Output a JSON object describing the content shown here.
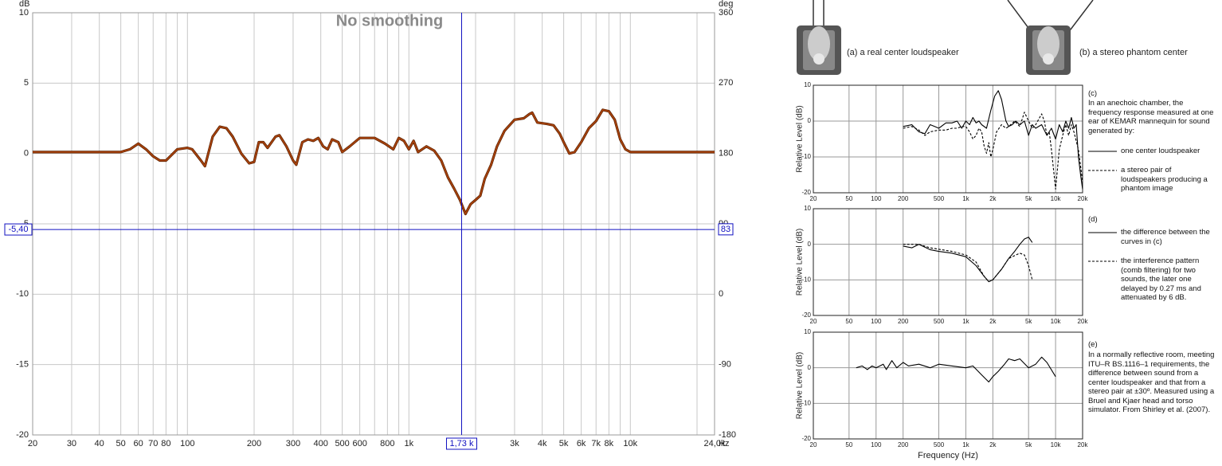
{
  "chart_data": [
    {
      "type": "line",
      "title": "No smoothing",
      "ylabel": "dB",
      "y2label": "deg",
      "x_unit": "Hz",
      "xscale": "log",
      "xlim": [
        20,
        24000
      ],
      "xticks": [
        20,
        30,
        40,
        50,
        60,
        70,
        80,
        100,
        200,
        300,
        400,
        500,
        600,
        800,
        {
          "value": 1000,
          "label": "1k"
        },
        {
          "value": 3000,
          "label": "3k"
        },
        {
          "value": 4000,
          "label": "4k"
        },
        {
          "value": 5000,
          "label": "5k"
        },
        {
          "value": 6000,
          "label": "6k"
        },
        {
          "value": 7000,
          "label": "7k"
        },
        {
          "value": 8000,
          "label": "8k"
        },
        {
          "value": 10000,
          "label": "10k"
        },
        {
          "value": 24000,
          "label": "24,0k"
        }
      ],
      "xminor": [
        90,
        700,
        900,
        2000,
        9000,
        20000
      ],
      "ylim": [
        -20,
        10
      ],
      "yticks": [
        -20,
        -15,
        -10,
        -5,
        0,
        5,
        10
      ],
      "y2lim": [
        -180,
        360
      ],
      "y2ticks": [
        -180,
        -90,
        0,
        90,
        180,
        270,
        360
      ],
      "grid": true,
      "cursor": {
        "x": {
          "value": 1730,
          "label": "1,73 k"
        },
        "y": {
          "value": -5.4,
          "label": "-5,40"
        },
        "y2": 83
      },
      "series": [
        {
          "color": "#a8420c",
          "style": "solid",
          "x": [
            20,
            50,
            55,
            60,
            65,
            70,
            75,
            80,
            90,
            100,
            105,
            115,
            120,
            130,
            140,
            150,
            160,
            175,
            190,
            200,
            210,
            220,
            230,
            250,
            260,
            280,
            300,
            310,
            330,
            350,
            370,
            390,
            410,
            430,
            450,
            480,
            500,
            540,
            600,
            700,
            780,
            850,
            900,
            950,
            1000,
            1050,
            1100,
            1200,
            1300,
            1400,
            1500,
            1600,
            1700,
            1800,
            1900,
            2000,
            2100,
            2200,
            2350,
            2500,
            2700,
            3000,
            3300,
            3500,
            3600,
            3800,
            4200,
            4500,
            4800,
            5000,
            5300,
            5600,
            6000,
            6500,
            7000,
            7500,
            8000,
            8500,
            9000,
            9500,
            10000,
            24000
          ],
          "values": [
            0.1,
            0.1,
            0.3,
            0.7,
            0.3,
            -0.2,
            -0.5,
            -0.5,
            0.3,
            0.4,
            0.3,
            -0.5,
            -0.9,
            1.2,
            1.9,
            1.8,
            1.2,
            0,
            -0.7,
            -0.6,
            0.8,
            0.8,
            0.4,
            1.2,
            1.3,
            0.5,
            -0.5,
            -0.8,
            0.8,
            1.0,
            0.9,
            1.1,
            0.5,
            0.3,
            1.0,
            0.8,
            0.1,
            0.5,
            1.1,
            1.1,
            0.7,
            0.3,
            1.1,
            0.9,
            0.3,
            0.9,
            0.1,
            0.5,
            0.2,
            -0.5,
            -1.7,
            -2.5,
            -3.3,
            -4.3,
            -3.6,
            -3.3,
            -3.0,
            -1.8,
            -0.8,
            0.5,
            1.6,
            2.4,
            2.5,
            2.8,
            2.9,
            2.2,
            2.1,
            2.0,
            1.4,
            0.8,
            0.0,
            0.1,
            0.8,
            1.8,
            2.3,
            3.1,
            3.0,
            2.4,
            1.0,
            0.3,
            0.1,
            0.1
          ]
        }
      ]
    },
    {
      "type": "line",
      "panel": "(c)",
      "caption": "In an anechoic chamber, the frequency response measured at one ear of KEMAR mannequin for sound generated by:",
      "ylabel": "Relative Level (dB)",
      "xscale": "log",
      "xlim": [
        20,
        20000
      ],
      "xticks": [
        20,
        50,
        100,
        200,
        500,
        {
          "value": 1000,
          "label": "1k"
        },
        {
          "value": 2000,
          "label": "2k"
        },
        {
          "value": 5000,
          "label": "5k"
        },
        {
          "value": 10000,
          "label": "10k"
        },
        {
          "value": 20000,
          "label": "20k"
        }
      ],
      "ylim": [
        -20,
        10
      ],
      "yticks": [
        -20,
        -10,
        0,
        10
      ],
      "grid": true,
      "series": [
        {
          "name": "one center loudspeaker",
          "color": "#000000",
          "style": "solid",
          "x": [
            200,
            250,
            300,
            350,
            400,
            450,
            500,
            600,
            700,
            800,
            900,
            1000,
            1100,
            1200,
            1300,
            1400,
            1500,
            1700,
            1900,
            2100,
            2300,
            2500,
            2800,
            3000,
            3300,
            3600,
            4000,
            4500,
            5000,
            5500,
            6000,
            7000,
            8000,
            9000,
            10000,
            11000,
            12000,
            13000,
            14000,
            15000,
            16000,
            17000,
            18000,
            19000,
            20000
          ],
          "values": [
            -1.5,
            -1,
            -3,
            -3.5,
            -1,
            -1.5,
            -2,
            -0.5,
            -0.5,
            0,
            -2,
            0,
            -1,
            1,
            -0.5,
            0,
            -1,
            -2,
            3,
            7,
            8.5,
            6,
            0,
            -1.5,
            -1,
            0,
            -1,
            0,
            -4,
            -1,
            -2,
            -1,
            -4,
            -2,
            -5,
            -1,
            -3,
            0,
            -2,
            1,
            -2,
            -1,
            -10,
            -15,
            -19
          ]
        },
        {
          "name": "a stereo pair of loudspeakers producing a phantom image",
          "color": "#000000",
          "style": "dashed",
          "x": [
            200,
            250,
            300,
            350,
            400,
            500,
            600,
            700,
            800,
            900,
            1000,
            1100,
            1200,
            1300,
            1400,
            1500,
            1600,
            1700,
            1800,
            1900,
            2000,
            2200,
            2500,
            2800,
            3000,
            3500,
            4000,
            4500,
            5000,
            5500,
            6000,
            7000,
            7500,
            8000,
            8500,
            9000,
            10000,
            11000,
            12000,
            13000,
            14000,
            15000,
            16000,
            18000,
            20000
          ],
          "values": [
            -2,
            -1.5,
            -2.5,
            -4,
            -3,
            -2.5,
            -2.5,
            -2,
            -2,
            -1.5,
            -1.5,
            -3,
            -5,
            -4,
            -2,
            -3,
            -7,
            -9,
            -6,
            -10,
            -8,
            -3,
            -1,
            -2,
            -1.5,
            0,
            -1.5,
            2.5,
            0,
            -2,
            -1,
            2,
            0,
            -4,
            -3,
            -8,
            -19,
            -8,
            -4,
            -1,
            -4,
            -1,
            -3,
            -8,
            -17
          ]
        }
      ]
    },
    {
      "type": "line",
      "panel": "(d)",
      "ylabel": "Relative Level (dB)",
      "xscale": "log",
      "xlim": [
        20,
        20000
      ],
      "xticks": [
        20,
        50,
        100,
        200,
        500,
        {
          "value": 1000,
          "label": "1k"
        },
        {
          "value": 2000,
          "label": "2k"
        },
        {
          "value": 5000,
          "label": "5k"
        },
        {
          "value": 10000,
          "label": "10k"
        },
        {
          "value": 20000,
          "label": "20k"
        }
      ],
      "ylim": [
        -20,
        10
      ],
      "yticks": [
        -20,
        -10,
        0,
        10
      ],
      "grid": true,
      "series": [
        {
          "name": "the difference between the curves in (c)",
          "color": "#000000",
          "style": "solid",
          "x": [
            200,
            250,
            300,
            400,
            500,
            700,
            1000,
            1300,
            1600,
            1800,
            2000,
            2500,
            3000,
            3500,
            4000,
            4500,
            5000,
            5500
          ],
          "values": [
            -0.5,
            -1,
            0,
            -1.5,
            -2,
            -2.5,
            -3.5,
            -6,
            -9,
            -10.5,
            -10,
            -7,
            -4,
            -2,
            0,
            1.5,
            2,
            0.5
          ]
        },
        {
          "name": "the interference pattern (comb filtering) for two sounds, the later one delayed by 0.27 ms and attenuated by 6 dB.",
          "color": "#000000",
          "style": "dashed",
          "x": [
            200,
            300,
            400,
            700,
            1000,
            1300,
            1600,
            1800,
            2000,
            2500,
            3000,
            4000,
            4500,
            5000,
            5500
          ],
          "values": [
            0,
            0,
            -1,
            -2,
            -3,
            -5,
            -9,
            -10.5,
            -10,
            -7,
            -4,
            -2.5,
            -3,
            -6,
            -10
          ]
        }
      ]
    },
    {
      "type": "line",
      "panel": "(e)",
      "caption": "In a normally reflective room, meeting ITU–R BS.1116–1 requirements, the difference between sound from a center loudspeaker and that from a stereo pair at ±30º. Measured using a Bruel and Kjaer head and torso simulator. From Shirley et al. (2007).",
      "ylabel": "Relative Level (dB)",
      "xlabel": "Frequency (Hz)",
      "xscale": "log",
      "xlim": [
        20,
        20000
      ],
      "xticks": [
        20,
        50,
        100,
        200,
        500,
        {
          "value": 1000,
          "label": "1k"
        },
        {
          "value": 2000,
          "label": "2k"
        },
        {
          "value": 5000,
          "label": "5k"
        },
        {
          "value": 10000,
          "label": "10k"
        },
        {
          "value": 20000,
          "label": "20k"
        }
      ],
      "ylim": [
        -20,
        10
      ],
      "yticks": [
        -20,
        -10,
        0,
        10
      ],
      "grid": true,
      "series": [
        {
          "color": "#000000",
          "style": "solid",
          "x": [
            60,
            70,
            80,
            90,
            100,
            120,
            130,
            150,
            170,
            200,
            230,
            300,
            400,
            500,
            700,
            1000,
            1200,
            1500,
            1800,
            2000,
            2300,
            2700,
            3000,
            3500,
            4000,
            5000,
            6000,
            7000,
            8000,
            10000
          ],
          "values": [
            0,
            0.5,
            -0.5,
            0.5,
            0,
            1,
            -0.5,
            2,
            0,
            1.5,
            0.5,
            1,
            0,
            1,
            0.5,
            0,
            0.5,
            -2,
            -4,
            -2.5,
            -1,
            1,
            2.5,
            2,
            2.5,
            0,
            1,
            3,
            1.5,
            -2.5
          ]
        }
      ]
    }
  ],
  "figure": {
    "a_label": "(a) a real center loudspeaker",
    "b_label": "(b) a stereo phantom center"
  }
}
